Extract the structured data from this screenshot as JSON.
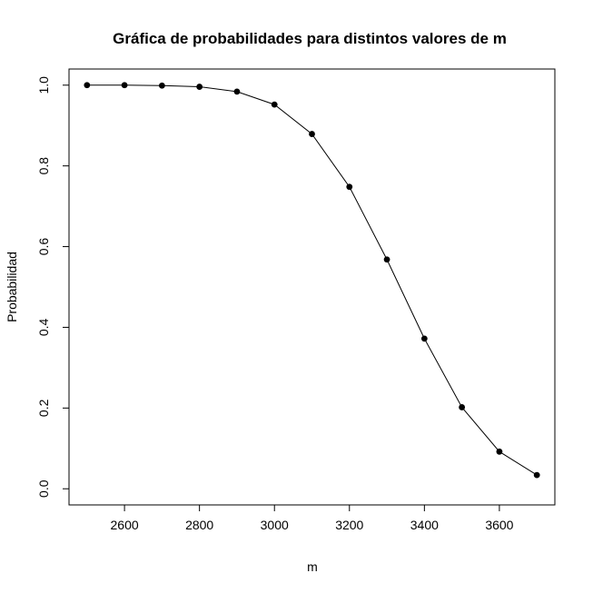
{
  "chart_data": {
    "type": "line",
    "title": "Gráfica de probabilidades para distintos valores de m",
    "xlabel": "m",
    "ylabel": "Probabilidad",
    "x": [
      2500,
      2600,
      2700,
      2800,
      2900,
      3000,
      3100,
      3200,
      3300,
      3400,
      3500,
      3600,
      3700
    ],
    "series": [
      {
        "values": [
          1.0,
          1.0,
          0.999,
          0.996,
          0.984,
          0.952,
          0.879,
          0.748,
          0.568,
          0.372,
          0.202,
          0.092,
          0.034
        ]
      }
    ],
    "xlim": [
      2452,
      3748
    ],
    "ylim": [
      -0.04,
      1.04
    ],
    "xticks": [
      2600,
      2800,
      3000,
      3200,
      3400,
      3600
    ],
    "xtick_labels": [
      "2600",
      "2800",
      "3000",
      "3200",
      "3400",
      "3600"
    ],
    "yticks": [
      0.0,
      0.2,
      0.4,
      0.6,
      0.8,
      1.0
    ],
    "ytick_labels": [
      "0.0",
      "0.2",
      "0.4",
      "0.6",
      "0.8",
      "1.0"
    ],
    "grid": false,
    "marker": "filled-circle",
    "line_color": "#000000"
  }
}
